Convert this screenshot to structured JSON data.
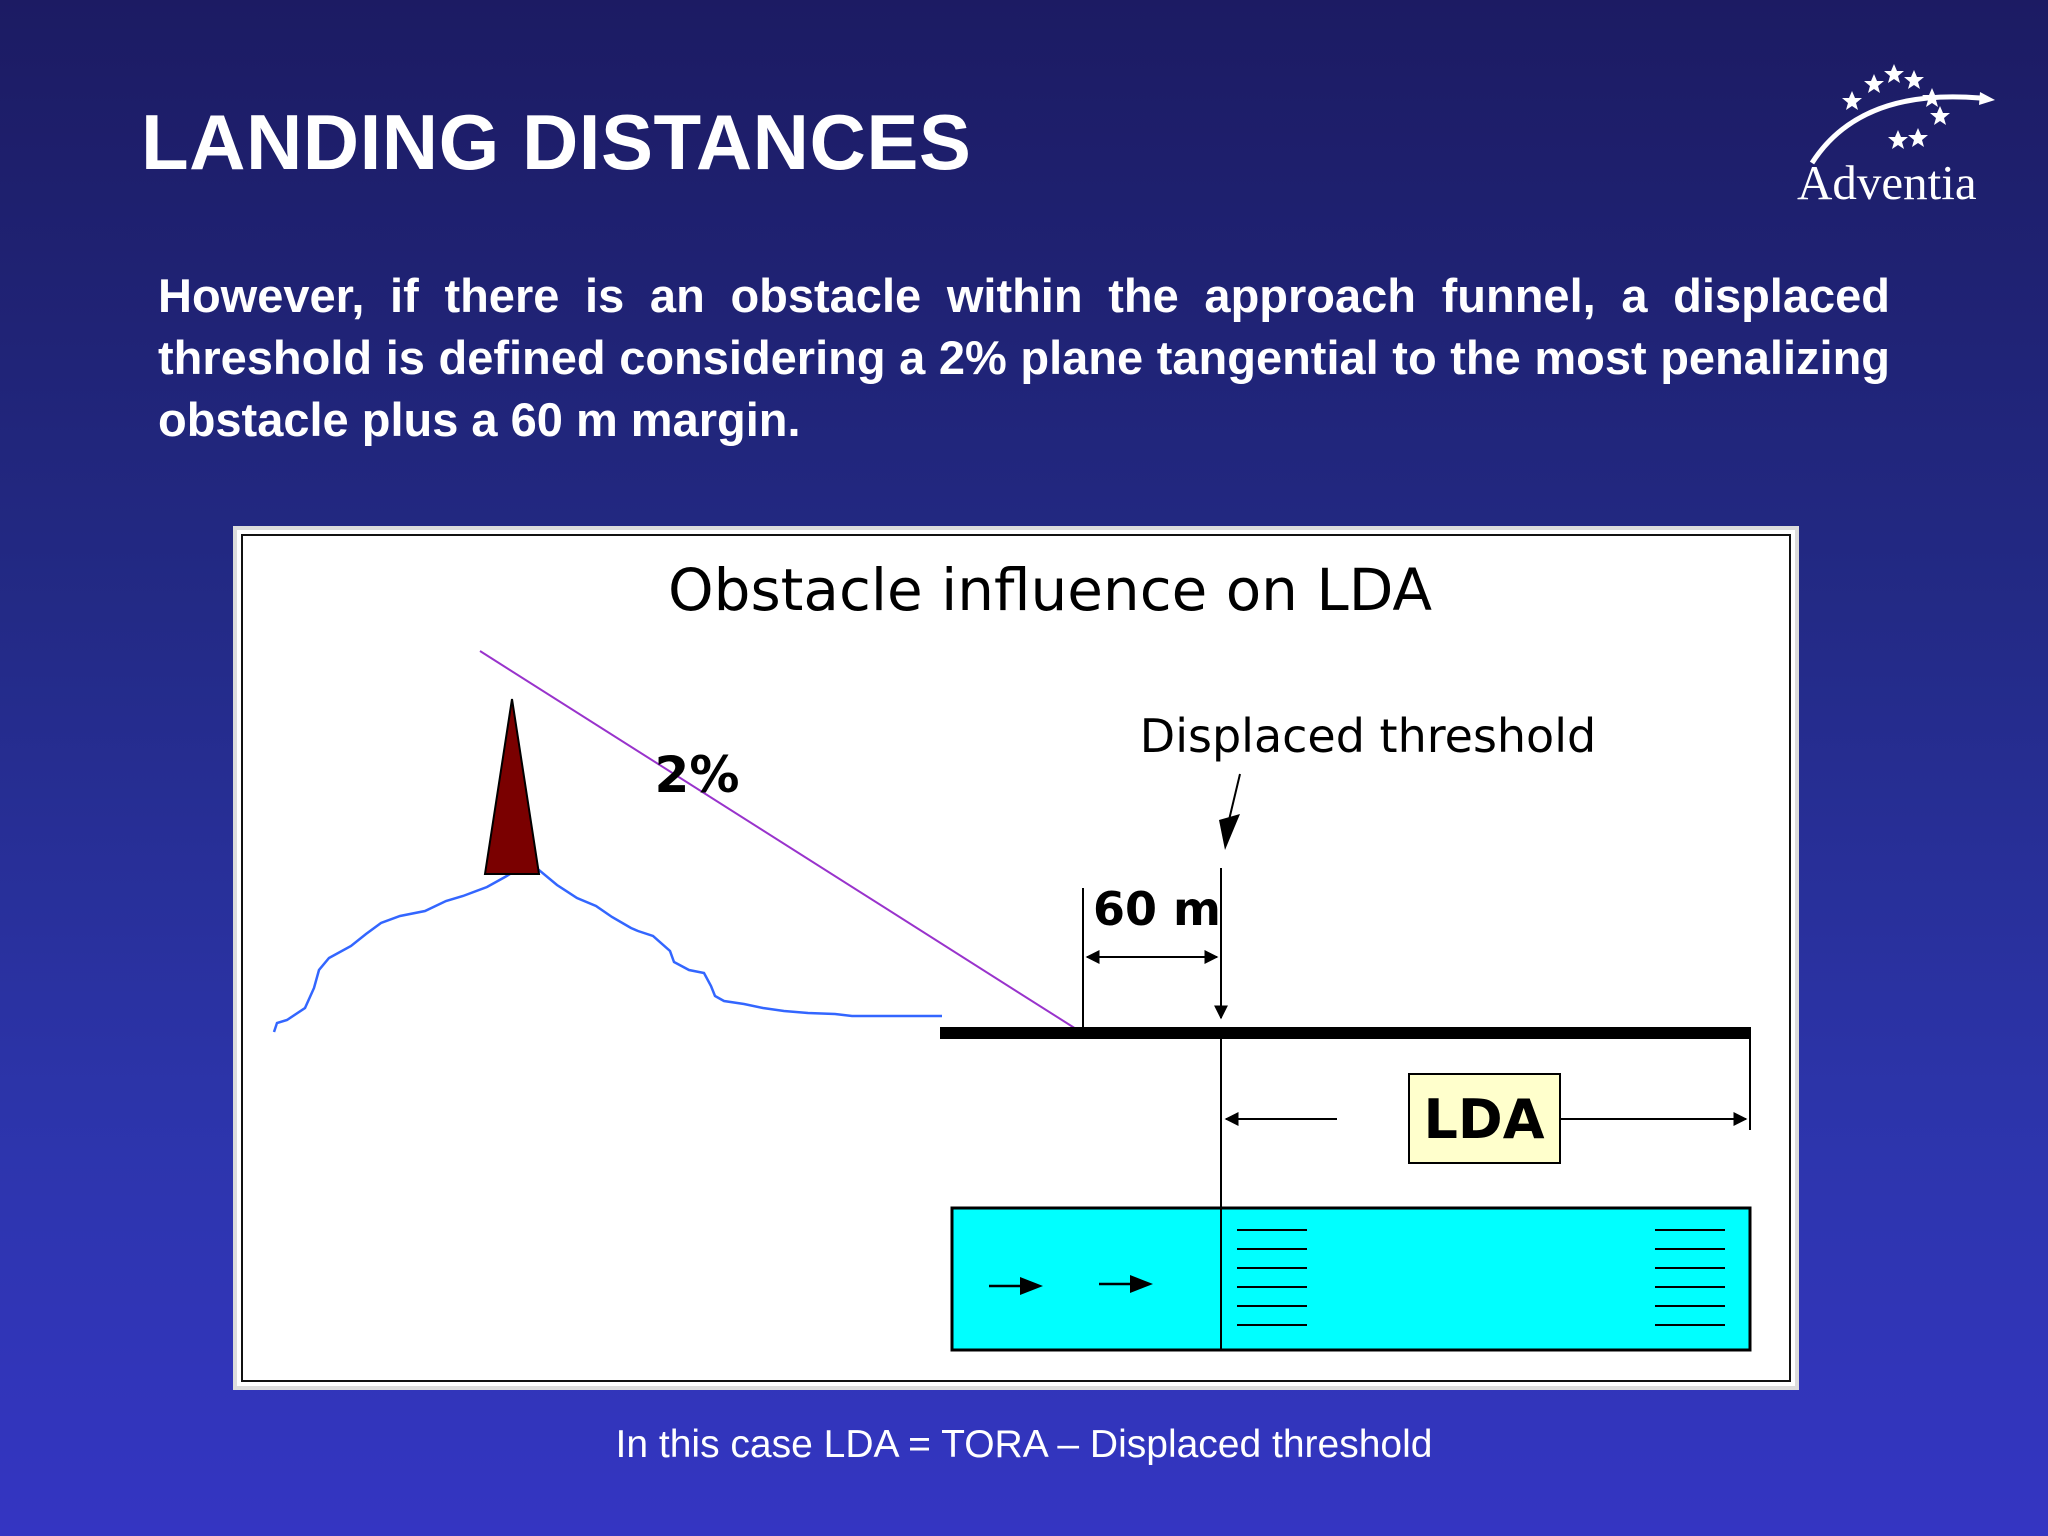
{
  "slide": {
    "title": "LANDING DISTANCES",
    "intro": "However, if there is an obstacle within the approach funnel, a displaced threshold is defined considering a 2% plane tangential to the most penalizing obstacle plus a 60 m margin.",
    "caption": "In this case LDA = TORA – Displaced threshold"
  },
  "logo": {
    "name": "Adventia",
    "icon": "stars-arc-logo"
  },
  "diagram": {
    "title": "Obstacle influence on LDA",
    "slope_label": "2%",
    "threshold_label": "Displaced threshold",
    "margin_label": "60 m",
    "lda_label": "LDA",
    "colors": {
      "obstacle": "#7a0000",
      "terrain": "#3366ff",
      "slope_line": "#9933cc",
      "runway_plan": "#00ffff",
      "lda_box": "#ffffcc"
    }
  }
}
